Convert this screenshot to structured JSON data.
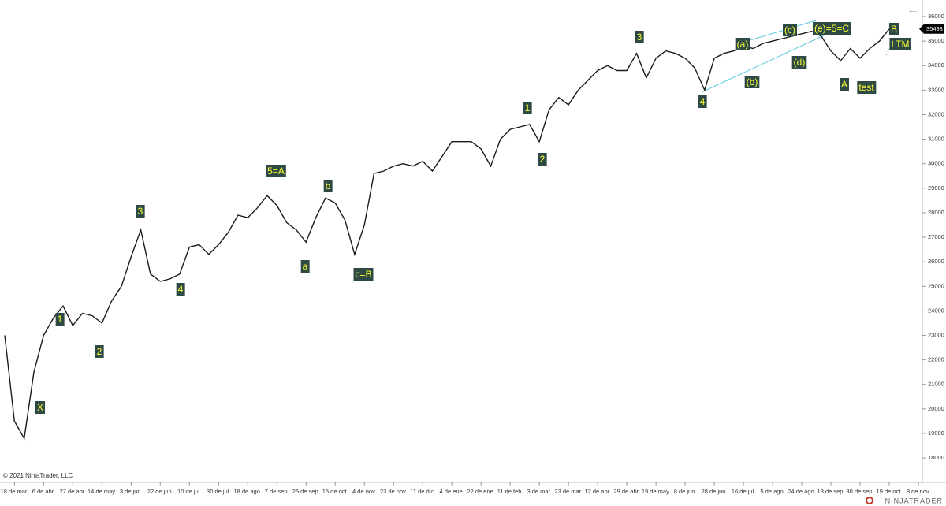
{
  "chart_data": {
    "type": "line",
    "color": "#1a1a1a",
    "categories": [
      null,
      "18 de mar.",
      null,
      null,
      "6 de abr.",
      null,
      null,
      "27 de abr.",
      null,
      null,
      "14 de may.",
      null,
      null,
      "3 de jun.",
      null,
      null,
      "22 de jun.",
      null,
      null,
      "10 de jul.",
      null,
      null,
      "30 de jul.",
      null,
      null,
      "18 de ago.",
      null,
      null,
      "7 de sep.",
      null,
      null,
      "25 de sep.",
      null,
      null,
      "15 de oct.",
      null,
      null,
      "4 de nov.",
      null,
      null,
      "23 de nov.",
      null,
      null,
      "11 de dic.",
      null,
      null,
      "4 de ene.",
      null,
      null,
      "22 de ene.",
      null,
      null,
      "11 de feb.",
      null,
      null,
      "3 de mar.",
      null,
      null,
      "23 de mar.",
      null,
      null,
      "12 de abr.",
      null,
      null,
      "29 de abr.",
      null,
      null,
      "19 de may.",
      null,
      null,
      "8 de jun.",
      null,
      null,
      "28 de jun.",
      null,
      null,
      "16 de jul.",
      null,
      null,
      "5 de ago.",
      null,
      null,
      "24 de ago.",
      null,
      null,
      "13 de sep.",
      null,
      null,
      "30 de sep.",
      null,
      null,
      "19 de oct.",
      null,
      null,
      "8 de nov."
    ],
    "values": [
      23000,
      19500,
      18800,
      21500,
      23000,
      23700,
      24200,
      23400,
      23900,
      23800,
      23500,
      24400,
      25000,
      26200,
      27300,
      25500,
      25200,
      25300,
      25500,
      26600,
      26700,
      26300,
      26700,
      27200,
      27900,
      27800,
      28200,
      28700,
      28300,
      27600,
      27300,
      26800,
      27800,
      28600,
      28400,
      27700,
      26300,
      27500,
      29600,
      29700,
      29900,
      30000,
      29900,
      30100,
      29700,
      30300,
      30900,
      30900,
      30900,
      30600,
      29900,
      31000,
      31400,
      31500,
      31600,
      30900,
      32200,
      32700,
      32400,
      33000,
      33400,
      33800,
      34000,
      33800,
      33800,
      34500,
      33500,
      34300,
      34600,
      34500,
      34300,
      33900,
      33000,
      34300,
      34500,
      34600,
      34800,
      34700,
      34900,
      35000,
      35100,
      35200,
      35300,
      35400,
      35200,
      34600,
      34200,
      34700,
      34300,
      34700,
      35000,
      35493,
      null,
      null,
      null
    ],
    "ylim": [
      17070,
      36515
    ],
    "yticks": [
      18000,
      19000,
      20000,
      21000,
      22000,
      23000,
      24000,
      25000,
      26000,
      27000,
      28000,
      29000,
      30000,
      31000,
      32000,
      33000,
      34000,
      35000,
      36000
    ],
    "annotations": [
      "X",
      "1",
      "2",
      "3",
      "4",
      "5=A",
      "a",
      "b",
      "c=B",
      "1",
      "2",
      "3",
      "4",
      "(a)",
      "(b)",
      "(c)",
      "(d)",
      "(e)=5=C",
      "A",
      "test",
      "B",
      "LTM"
    ],
    "copyright": "© 2021 NinjaTrader, LLC",
    "brand": "NINJATRADER"
  }
}
